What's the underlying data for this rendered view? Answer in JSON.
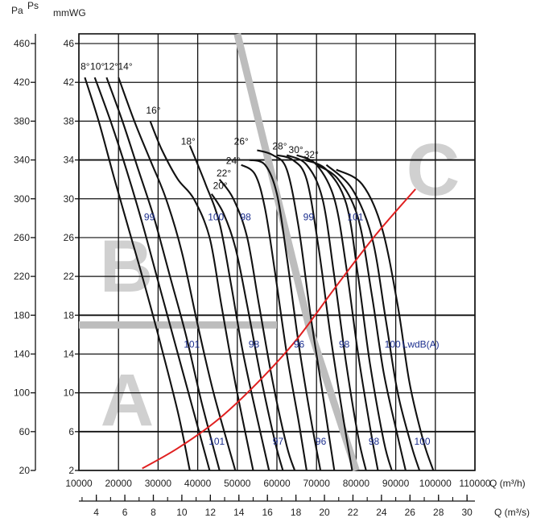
{
  "chart_data": {
    "type": "line",
    "title": "",
    "axis_units": {
      "pa": "Pa",
      "ps": "Ps",
      "mmwg": "mmWG",
      "q_m3h": "Q (m³/h)",
      "q_m3s": "Q (m³/s)"
    },
    "axes": {
      "x_m3h": {
        "range": [
          10000,
          110000
        ],
        "ticks": [
          "10000",
          "20000",
          "30000",
          "40000",
          "50000",
          "60000",
          "70000",
          "80000",
          "90000",
          "100000",
          "110000"
        ]
      },
      "x_m3s": {
        "ticks": [
          4,
          6,
          8,
          10,
          12,
          14,
          16,
          18,
          20,
          22,
          24,
          26,
          28,
          30
        ]
      },
      "y_mmwg": {
        "range": [
          2,
          47
        ],
        "ticks": [
          2,
          6,
          10,
          14,
          18,
          22,
          26,
          30,
          34,
          38,
          42,
          46
        ]
      },
      "y_pa": {
        "ticks": [
          20,
          60,
          100,
          140,
          180,
          220,
          260,
          300,
          340,
          380,
          420,
          460
        ]
      },
      "grid": true
    },
    "zones": [
      {
        "label": "A"
      },
      {
        "label": "B"
      },
      {
        "label": "C"
      }
    ],
    "blade_angle_curves": [
      {
        "name": "8°",
        "points": [
          [
            11500,
            42.5
          ],
          [
            15000,
            38
          ],
          [
            19000,
            32
          ],
          [
            22500,
            27
          ],
          [
            26000,
            22
          ],
          [
            30000,
            16
          ],
          [
            35000,
            8
          ],
          [
            38000,
            2
          ]
        ]
      },
      {
        "name": "10°",
        "points": [
          [
            14000,
            42.5
          ],
          [
            18000,
            38
          ],
          [
            22000,
            33
          ],
          [
            26000,
            27.5
          ],
          [
            30000,
            21.5
          ],
          [
            34000,
            15.5
          ],
          [
            39000,
            8
          ],
          [
            43000,
            2
          ]
        ]
      },
      {
        "name": "12°",
        "points": [
          [
            17000,
            42.5
          ],
          [
            21000,
            38
          ],
          [
            25000,
            33
          ],
          [
            29000,
            28
          ],
          [
            33000,
            22
          ],
          [
            37000,
            16
          ],
          [
            41000,
            9
          ],
          [
            45500,
            2
          ]
        ]
      },
      {
        "name": "14°",
        "points": [
          [
            20000,
            42.5
          ],
          [
            24000,
            38
          ],
          [
            28000,
            34
          ],
          [
            32000,
            30
          ],
          [
            36000,
            24.5
          ],
          [
            40000,
            17
          ],
          [
            44000,
            10
          ],
          [
            49500,
            2
          ]
        ]
      },
      {
        "name": "16°",
        "points": [
          [
            28000,
            38
          ],
          [
            31000,
            35
          ],
          [
            35000,
            32
          ],
          [
            39000,
            30
          ],
          [
            43000,
            26
          ],
          [
            46000,
            19
          ],
          [
            49500,
            11
          ],
          [
            54000,
            2
          ]
        ]
      },
      {
        "name": "18°",
        "points": [
          [
            38000,
            35.5
          ],
          [
            42000,
            31.5
          ],
          [
            45500,
            27.5
          ],
          [
            48500,
            21
          ],
          [
            51500,
            14
          ],
          [
            55500,
            6.5
          ],
          [
            58000,
            2
          ]
        ]
      },
      {
        "name": "20°",
        "points": [
          [
            43500,
            30.5
          ],
          [
            46500,
            28.5
          ],
          [
            49500,
            25
          ],
          [
            52500,
            19
          ],
          [
            56000,
            11.5
          ],
          [
            59500,
            5
          ],
          [
            61500,
            2
          ]
        ]
      },
      {
        "name": "22°",
        "points": [
          [
            45500,
            32
          ],
          [
            49000,
            30
          ],
          [
            52500,
            26
          ],
          [
            55500,
            19
          ],
          [
            59000,
            11
          ],
          [
            62500,
            4.5
          ],
          [
            64500,
            2
          ]
        ]
      },
      {
        "name": "24°",
        "points": [
          [
            51000,
            33.5
          ],
          [
            54500,
            32.5
          ],
          [
            57000,
            29
          ],
          [
            59500,
            22.5
          ],
          [
            62500,
            14
          ],
          [
            65500,
            7
          ],
          [
            67500,
            2
          ]
        ]
      },
      {
        "name": "26°",
        "points": [
          [
            53000,
            34
          ],
          [
            57000,
            33.5
          ],
          [
            60000,
            30.5
          ],
          [
            62500,
            24
          ],
          [
            65500,
            15
          ],
          [
            68500,
            7.5
          ],
          [
            71000,
            2
          ]
        ]
      },
      {
        "name": "28°",
        "points": [
          [
            55000,
            35
          ],
          [
            59000,
            34.5
          ],
          [
            62500,
            33
          ],
          [
            65500,
            27
          ],
          [
            68500,
            18
          ],
          [
            71500,
            10
          ],
          [
            74500,
            2
          ]
        ]
      },
      {
        "name": "30°",
        "points": [
          [
            60000,
            34.5
          ],
          [
            64000,
            34
          ],
          [
            67500,
            32
          ],
          [
            70500,
            25
          ],
          [
            73500,
            16
          ],
          [
            76500,
            8
          ],
          [
            79000,
            2
          ]
        ]
      },
      {
        "name": "32°",
        "points": [
          [
            62500,
            34.5
          ],
          [
            67500,
            33.5
          ],
          [
            71500,
            30
          ],
          [
            74500,
            22
          ],
          [
            77500,
            13
          ],
          [
            80500,
            5.5
          ],
          [
            82500,
            2
          ]
        ]
      },
      {
        "name": "",
        "points": [
          [
            65000,
            34.5
          ],
          [
            70000,
            33.5
          ],
          [
            74500,
            30
          ],
          [
            77500,
            23
          ],
          [
            80500,
            14
          ],
          [
            83500,
            6.5
          ],
          [
            85500,
            2
          ]
        ]
      },
      {
        "name": "",
        "points": [
          [
            67000,
            34
          ],
          [
            72500,
            33
          ],
          [
            77500,
            29.5
          ],
          [
            80500,
            22
          ],
          [
            83500,
            13
          ],
          [
            87000,
            5
          ],
          [
            89000,
            2
          ]
        ]
      },
      {
        "name": "",
        "points": [
          [
            70000,
            33.5
          ],
          [
            75500,
            32
          ],
          [
            80500,
            28
          ],
          [
            84000,
            20
          ],
          [
            87000,
            12
          ],
          [
            90500,
            5.5
          ],
          [
            92500,
            2
          ]
        ]
      },
      {
        "name": "",
        "points": [
          [
            72500,
            33.5
          ],
          [
            79000,
            31
          ],
          [
            84000,
            26
          ],
          [
            87500,
            17.5
          ],
          [
            90500,
            10
          ],
          [
            94000,
            4.5
          ],
          [
            96000,
            2
          ]
        ]
      },
      {
        "name": "",
        "points": [
          [
            75000,
            33
          ],
          [
            81500,
            31.5
          ],
          [
            86500,
            27
          ],
          [
            90500,
            19
          ],
          [
            93500,
            11
          ],
          [
            97000,
            5
          ],
          [
            99500,
            2
          ]
        ]
      }
    ],
    "blade_angle_label_positions": [
      {
        "text": "8°",
        "x": 11600,
        "y": 43.3
      },
      {
        "text": "10°",
        "x": 14700,
        "y": 43.3
      },
      {
        "text": "12°",
        "x": 18100,
        "y": 43.3
      },
      {
        "text": "14°",
        "x": 21700,
        "y": 43.3
      },
      {
        "text": "16°",
        "x": 28800,
        "y": 38.8
      },
      {
        "text": "18°",
        "x": 37600,
        "y": 35.6
      },
      {
        "text": "20°",
        "x": 45700,
        "y": 31.0
      },
      {
        "text": "22°",
        "x": 46600,
        "y": 32.3
      },
      {
        "text": "24°",
        "x": 49000,
        "y": 33.6
      },
      {
        "text": "26°",
        "x": 51000,
        "y": 35.6
      },
      {
        "text": "28°",
        "x": 60700,
        "y": 35.1
      },
      {
        "text": "30°",
        "x": 64800,
        "y": 34.7
      },
      {
        "text": "32°",
        "x": 68700,
        "y": 34.2
      }
    ],
    "sound_power_labels": {
      "unit_label": "LwdB(A)",
      "items": [
        {
          "text": "99",
          "x": 27800,
          "y": 28.1
        },
        {
          "text": "100",
          "x": 44600,
          "y": 28.1
        },
        {
          "text": "98",
          "x": 52100,
          "y": 28.1
        },
        {
          "text": "99",
          "x": 68000,
          "y": 28.1
        },
        {
          "text": "101",
          "x": 79800,
          "y": 28.1
        },
        {
          "text": "101",
          "x": 38500,
          "y": 15.0
        },
        {
          "text": "98",
          "x": 54200,
          "y": 15.0
        },
        {
          "text": "96",
          "x": 65600,
          "y": 15.0
        },
        {
          "text": "98",
          "x": 77000,
          "y": 15.0
        },
        {
          "text": "100",
          "x": 89200,
          "y": 15.0
        },
        {
          "text": "101",
          "x": 44800,
          "y": 5.0
        },
        {
          "text": "97",
          "x": 60300,
          "y": 5.0
        },
        {
          "text": "96",
          "x": 71100,
          "y": 5.0
        },
        {
          "text": "98",
          "x": 84500,
          "y": 5.0
        },
        {
          "text": "100",
          "x": 96700,
          "y": 5.0
        }
      ]
    },
    "system_curve": {
      "color": "#e02020",
      "points": [
        [
          26000,
          2.2
        ],
        [
          35000,
          4.3
        ],
        [
          45000,
          7.2
        ],
        [
          55000,
          11.0
        ],
        [
          65000,
          15.5
        ],
        [
          75000,
          21.0
        ],
        [
          85000,
          26.3
        ],
        [
          95000,
          31.0
        ]
      ]
    },
    "zone_boundaries": {
      "color": "#bdbdbd",
      "b_a_separator": {
        "y": 17.0,
        "x_from": 10000,
        "x_to": 60000
      },
      "diagonal": {
        "points": [
          [
            50000,
            47
          ],
          [
            68000,
            17
          ],
          [
            80000,
            2
          ]
        ]
      }
    },
    "colors": {
      "curves": "#111111",
      "db_labels": "#1c2f8f",
      "grid": "#111111"
    }
  }
}
